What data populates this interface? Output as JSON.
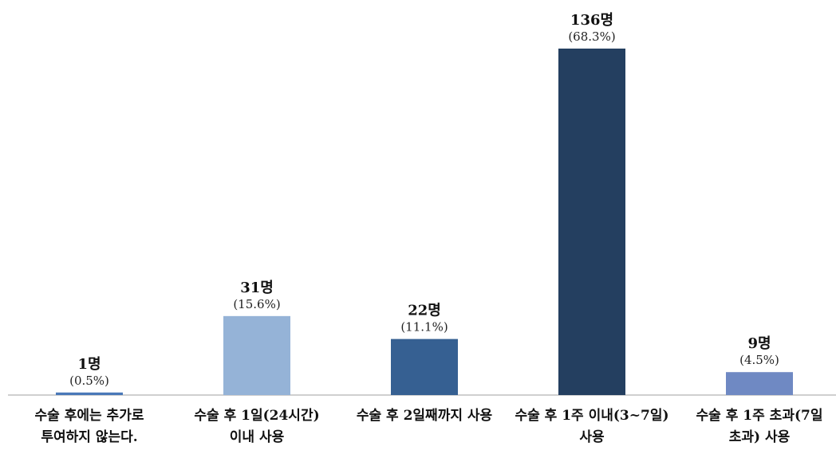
{
  "chart_data": {
    "type": "bar",
    "title": "",
    "xlabel": "",
    "ylabel": "",
    "grid": false,
    "legend": "none",
    "categories": [
      [
        "수술 후에는 추가로",
        "투여하지 않는다."
      ],
      [
        "수술 후 1일(24시간)",
        "이내 사용"
      ],
      [
        "수술 후 2일째까지 사용"
      ],
      [
        "수술 후 1주 이내(3~7일)",
        "사용"
      ],
      [
        "수술 후 1주 초과(7일",
        "초과) 사용"
      ]
    ],
    "values": [
      1,
      31,
      22,
      136,
      9
    ],
    "count_labels": [
      "1명",
      "31명",
      "22명",
      "136명",
      "9명"
    ],
    "percent_labels": [
      "(0.5%)",
      "(15.6%)",
      "(11.1%)",
      "(68.3%)",
      "(4.5%)"
    ],
    "colors": [
      "#4a78b8",
      "#95b3d7",
      "#366092",
      "#243f60",
      "#6f89c3"
    ],
    "ylim": [
      0,
      136
    ]
  }
}
